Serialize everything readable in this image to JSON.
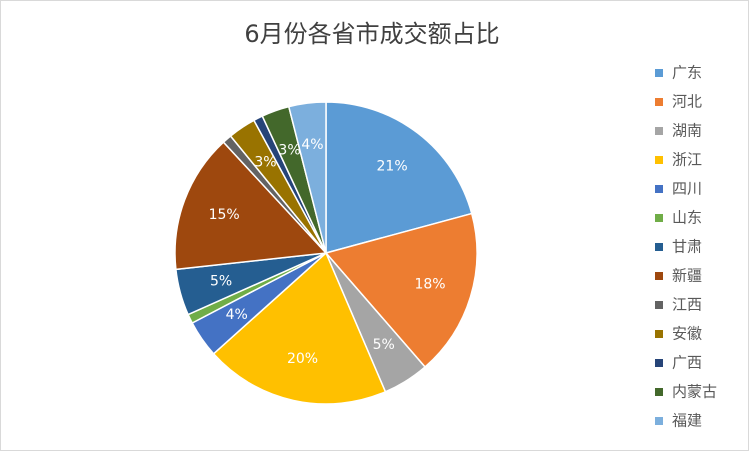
{
  "chart_data": {
    "type": "pie",
    "title": "6月份各省市成交额占比",
    "categories": [
      "广东",
      "河北",
      "湖南",
      "浙江",
      "四川",
      "山东",
      "甘肃",
      "新疆",
      "江西",
      "安徽",
      "广西",
      "内蒙古",
      "福建"
    ],
    "values": [
      21,
      18,
      5,
      20,
      4,
      1,
      5,
      15,
      1,
      3,
      1,
      3,
      4
    ],
    "value_labels": [
      "21%",
      "18%",
      "5%",
      "20%",
      "4%",
      null,
      "5%",
      "15%",
      null,
      "3%",
      null,
      "3%",
      "4%"
    ],
    "colors": [
      "#5b9bd5",
      "#ed7d31",
      "#a5a5a5",
      "#ffc000",
      "#4472c4",
      "#70ad47",
      "#255e91",
      "#9e480e",
      "#636363",
      "#997300",
      "#264478",
      "#43682b",
      "#7cafdd"
    ],
    "legend": "right"
  }
}
